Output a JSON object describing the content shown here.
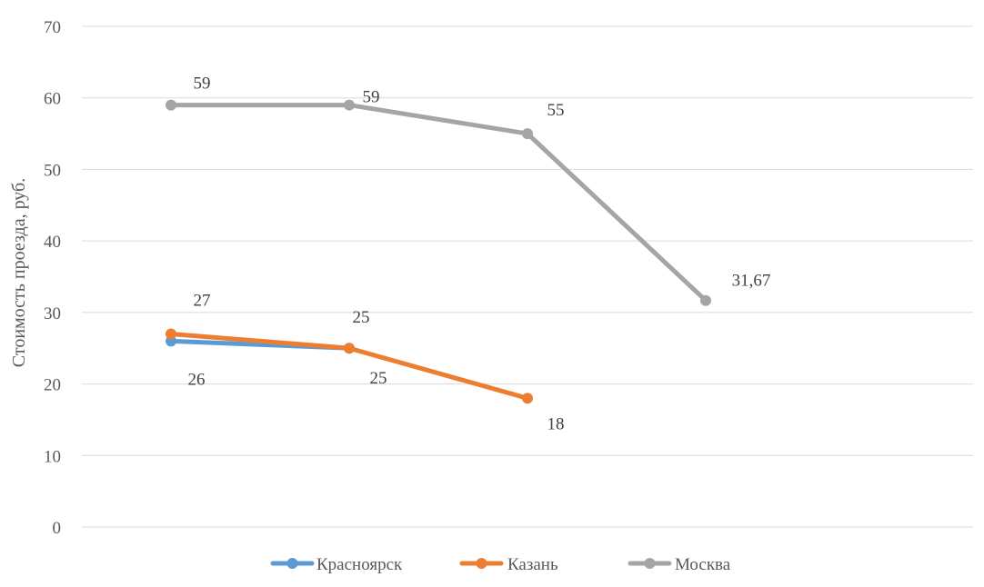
{
  "chart_data": {
    "type": "line",
    "title": "",
    "xlabel": "",
    "ylabel": "Стоимость проезда, руб.",
    "ylim": [
      0,
      70
    ],
    "yticks": [
      0,
      10,
      20,
      30,
      40,
      50,
      60,
      70
    ],
    "grid": true,
    "legend_position": "bottom",
    "x_count": 4,
    "series": [
      {
        "name": "Красноярск",
        "color": "#5b9bd5",
        "values": [
          26,
          25,
          null,
          null
        ],
        "labels": [
          "26",
          "25",
          "",
          ""
        ]
      },
      {
        "name": "Казань",
        "color": "#ed7d31",
        "values": [
          27,
          25,
          18,
          null
        ],
        "labels": [
          "27",
          "25",
          "18",
          ""
        ]
      },
      {
        "name": "Москва",
        "color": "#a5a5a5",
        "values": [
          59,
          59,
          55,
          31.67
        ],
        "labels": [
          "59",
          "59",
          "55",
          "31,67"
        ]
      }
    ]
  }
}
